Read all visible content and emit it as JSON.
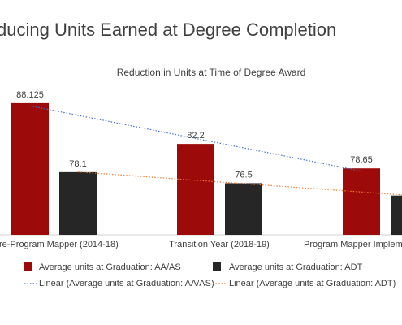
{
  "chart_data": {
    "type": "bar",
    "title": "ducing Units Earned at Degree Completion",
    "subtitle": "Reduction in Units at Time of Degree Award",
    "categories": [
      "re-Program Mapper (2014-18)",
      "Transition Year (2018-19)",
      "Program Mapper Impleme"
    ],
    "series": [
      {
        "name": "Average units at Graduation: AA/AS",
        "color": "#9c0a0a",
        "values": [
          88.125,
          82.2,
          78.65
        ],
        "trendline": {
          "name": "Linear (Average units at Graduation: AA/AS)",
          "color": "#4472c4"
        }
      },
      {
        "name": "Average units at Graduation: ADT",
        "color": "#262626",
        "values": [
          78.1,
          76.5,
          74.7
        ],
        "trendline": {
          "name": "Linear (Average units at Graduation: ADT)",
          "color": "#ed7d31"
        }
      }
    ],
    "ylim": [
      69,
      90
    ]
  }
}
